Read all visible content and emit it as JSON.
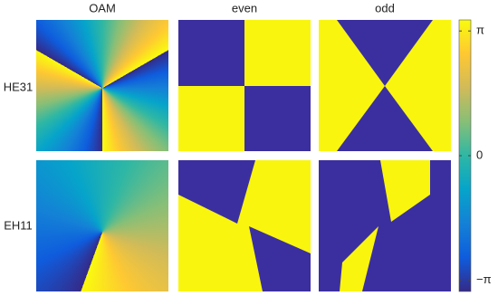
{
  "chart_data": {
    "type": "colorbar",
    "columns": [
      "OAM",
      "even",
      "odd"
    ],
    "rows": [
      "HE31",
      "EH11"
    ],
    "ylim": [
      -3.42,
      3.42
    ],
    "yticks": [
      {
        "value": 3.14159,
        "label": "π"
      },
      0,
      {
        "value": -3.14159,
        "label": "−π"
      }
    ],
    "colormap": [
      "#352a87",
      "#0f5cdd",
      "#1481d6",
      "#06a4ca",
      "#2eb7a4",
      "#87bf77",
      "#d1bb59",
      "#fec832",
      "#f9fb0e"
    ]
  }
}
